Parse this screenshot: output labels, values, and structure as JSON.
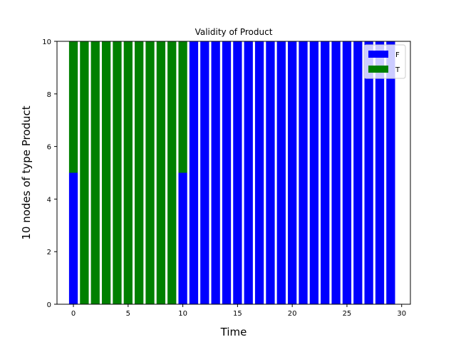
{
  "chart_data": {
    "type": "bar",
    "stacked": true,
    "title": "Validity of Product",
    "xlabel": "Time",
    "ylabel": "10 nodes  of type Product",
    "xlim": [
      -1.5,
      30.8
    ],
    "ylim": [
      0,
      10
    ],
    "xticks": [
      0,
      5,
      10,
      15,
      20,
      25,
      30
    ],
    "yticks": [
      0,
      2,
      4,
      6,
      8,
      10
    ],
    "x": [
      0,
      1,
      2,
      3,
      4,
      5,
      6,
      7,
      8,
      9,
      10,
      11,
      12,
      13,
      14,
      15,
      16,
      17,
      18,
      19,
      20,
      21,
      22,
      23,
      24,
      25,
      26,
      27,
      28,
      29
    ],
    "series": [
      {
        "name": "F",
        "color": "#0000ff",
        "values": [
          5,
          0,
          0,
          0,
          0,
          0,
          0,
          0,
          0,
          0,
          5,
          10,
          10,
          10,
          10,
          10,
          10,
          10,
          10,
          10,
          10,
          10,
          10,
          10,
          10,
          10,
          10,
          10,
          10,
          10
        ]
      },
      {
        "name": "T",
        "color": "#008000",
        "values": [
          5,
          10,
          10,
          10,
          10,
          10,
          10,
          10,
          10,
          10,
          5,
          0,
          0,
          0,
          0,
          0,
          0,
          0,
          0,
          0,
          0,
          0,
          0,
          0,
          0,
          0,
          0,
          0,
          0,
          0
        ]
      }
    ],
    "legend_position": "top-right",
    "grid": false
  }
}
